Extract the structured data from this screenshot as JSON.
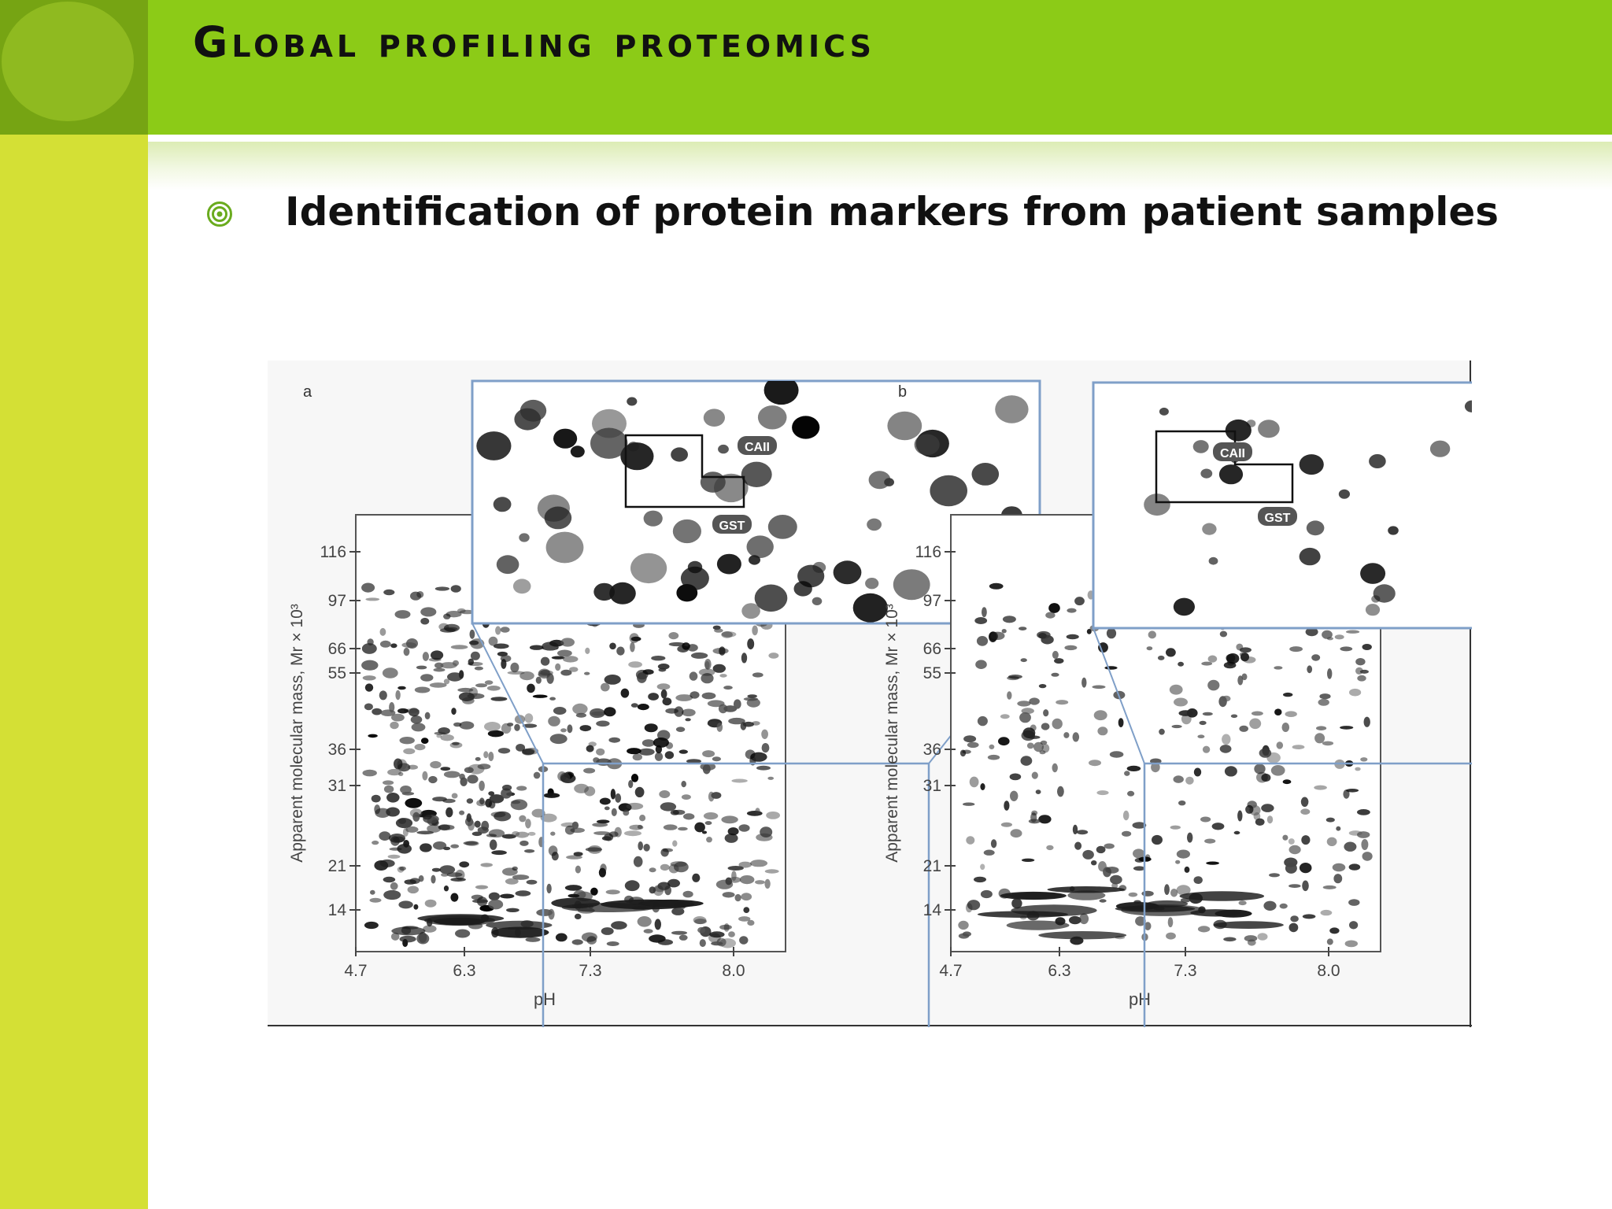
{
  "slide": {
    "title": "Global profiling proteomics",
    "bullet": "Identification of protein markers from patient samples"
  },
  "figure": {
    "panels": [
      {
        "label": "a",
        "y_axis_label": "Apparent molecular mass, Mr × 10³",
        "x_axis_label": "pH",
        "x_ticks": [
          "4.7",
          "6.3",
          "7.3",
          "8.0"
        ],
        "y_ticks": [
          "116",
          "97",
          "66",
          "55",
          "36",
          "31",
          "21",
          "14"
        ],
        "inset_labels": [
          "CAII",
          "GST"
        ]
      },
      {
        "label": "b",
        "y_axis_label": "Apparent molecular mass, Mr × 10³",
        "x_axis_label": "pH",
        "x_ticks": [
          "4.7",
          "6.3",
          "7.3",
          "8.0"
        ],
        "y_ticks": [
          "116",
          "97",
          "66",
          "55",
          "36",
          "31",
          "21",
          "14"
        ],
        "inset_labels": [
          "CAII",
          "GST"
        ]
      }
    ]
  },
  "colors": {
    "header_green": "#8ccb17",
    "corner_green": "#76a413",
    "sidebar_yellow_green": "#d4e035",
    "bullet_green": "#6aab1e",
    "inset_frame_blue": "#7f9fc8"
  }
}
